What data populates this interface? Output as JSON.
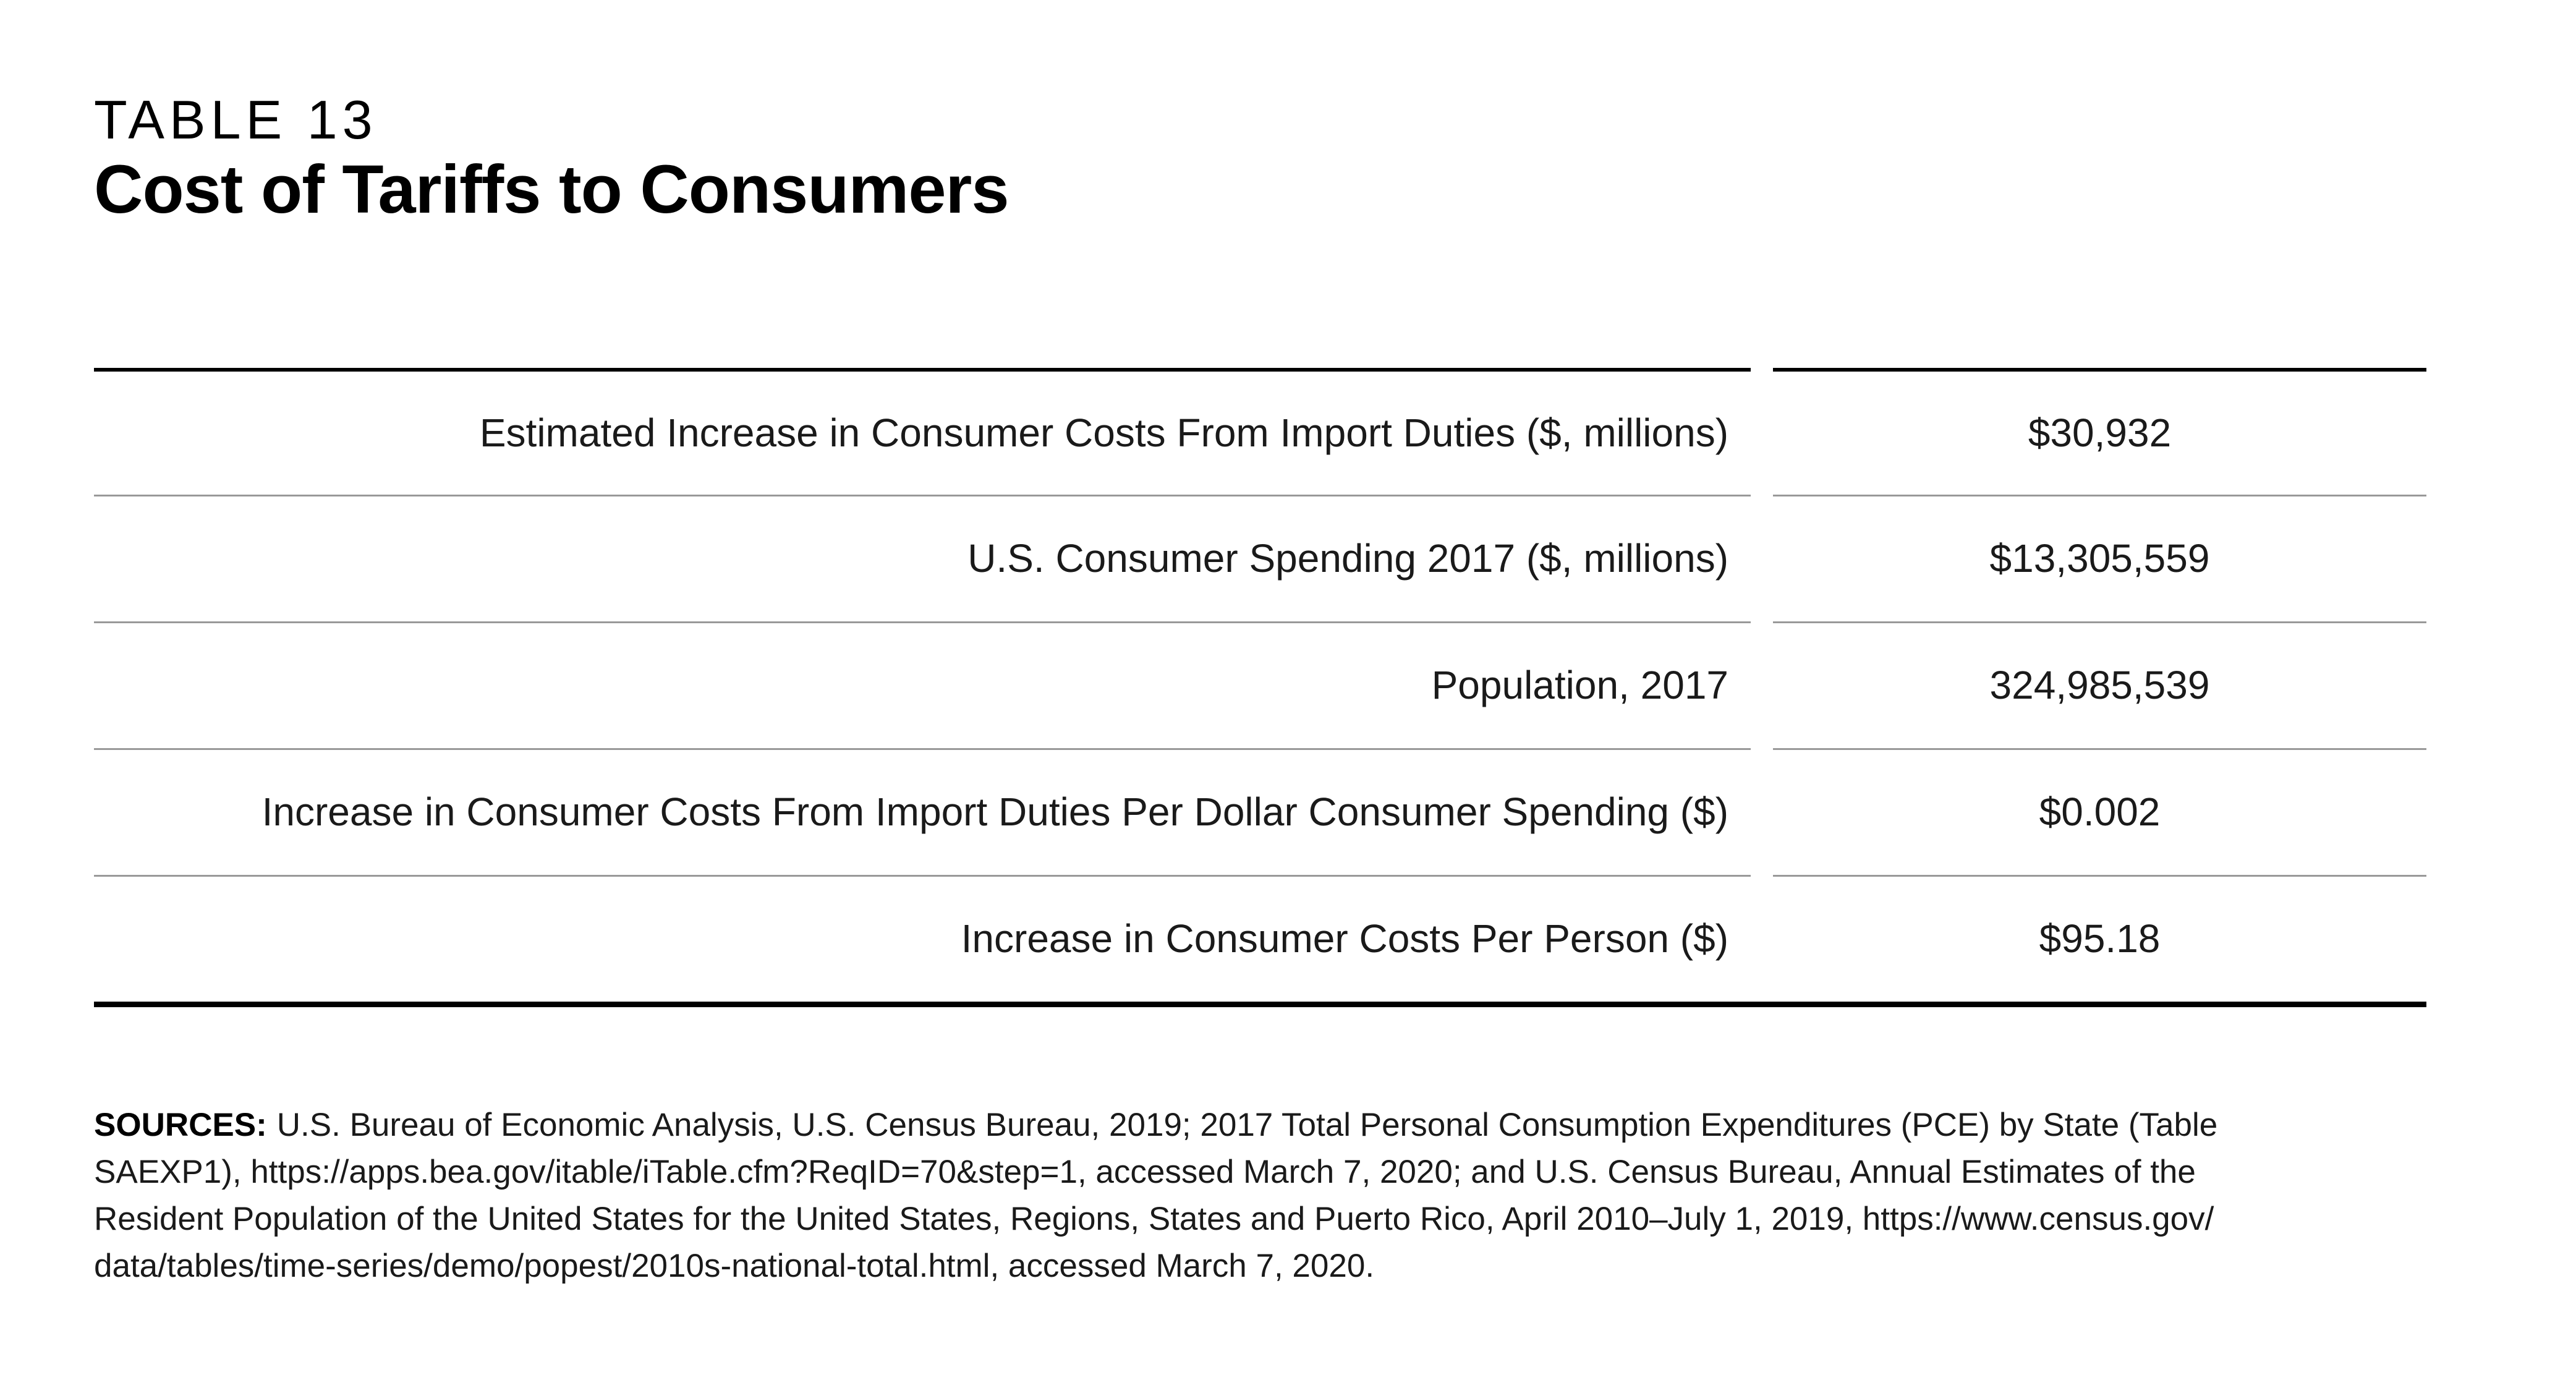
{
  "header": {
    "kicker": "TABLE 13",
    "title": "Cost of Tariffs to Consumers"
  },
  "chart_data": {
    "type": "table",
    "number_label": "TABLE 13",
    "title": "Cost of Tariffs to Consumers",
    "rows": [
      {
        "label": "Estimated Increase in Consumer Costs From Import Duties ($, millions)",
        "value": "$30,932",
        "numeric_value": 30932
      },
      {
        "label": "U.S. Consumer Spending 2017 ($, millions)",
        "value": "$13,305,559",
        "numeric_value": 13305559
      },
      {
        "label": "Population, 2017",
        "value": "324,985,539",
        "numeric_value": 324985539
      },
      {
        "label": "Increase in Consumer Costs From Import Duties Per Dollar Consumer Spending ($)",
        "value": "$0.002",
        "numeric_value": 0.002
      },
      {
        "label": "Increase in Consumer Costs Per Person ($)",
        "value": "$95.18",
        "numeric_value": 95.18
      }
    ],
    "layout": {
      "label_column_alignment": "right",
      "value_column_alignment": "center",
      "grid": "horizontal rules only"
    }
  },
  "sources": {
    "label": "SOURCES:",
    "lines": [
      "U.S. Bureau of Economic Analysis, U.S. Census Bureau, 2019; 2017 Total Personal Consumption Expenditures (PCE) by State (Table",
      "SAEXP1), https://apps.bea.gov/itable/iTable.cfm?ReqID=70&step=1, accessed March 7, 2020; and U.S. Census Bureau, Annual Estimates of the",
      "Resident Population of the United States for the United States, Regions, States and Puerto Rico, April 2010–July 1, 2019, https://www.census.gov/",
      "data/tables/time-series/demo/popest/2010s-national-total.html, accessed March 7, 2020."
    ]
  },
  "colors": {
    "background": "#ffffff",
    "text": "#1a1a1a",
    "title_text": "#000000",
    "rule_heavy": "#000000",
    "rule_light": "#999999"
  }
}
